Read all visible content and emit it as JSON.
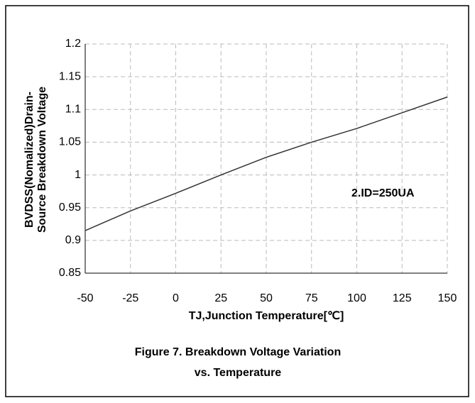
{
  "chart_data": {
    "type": "line",
    "title": [
      "Figure 7. Breakdown Voltage Variation",
      "vs. Temperature"
    ],
    "xlabel": "TJ,Junction Temperature[℃]",
    "ylabel": [
      "BVDSS(Nomalized)Drain-",
      "Source Breakdown Voltage"
    ],
    "annotation": "2.ID=250UA",
    "x": [
      -50,
      -25,
      0,
      25,
      50,
      75,
      100,
      125,
      150
    ],
    "series": [
      {
        "color": "#333333",
        "values": [
          0.915,
          0.945,
          0.972,
          1.0,
          1.027,
          1.05,
          1.071,
          1.095,
          1.119
        ]
      }
    ],
    "xlim": [
      -50,
      150
    ],
    "xticks": [
      -50,
      -25,
      0,
      25,
      50,
      75,
      100,
      125,
      150
    ],
    "ylim": [
      0.85,
      1.2
    ],
    "yticks": [
      0.85,
      0.9,
      0.95,
      1,
      1.05,
      1.1,
      1.15,
      1.2
    ],
    "grid": true
  }
}
